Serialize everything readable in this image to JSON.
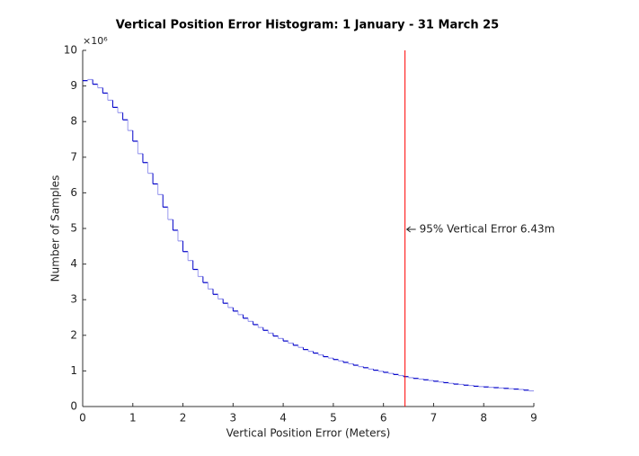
{
  "chart_data": {
    "type": "histogram",
    "title": "Vertical Position Error Histogram: 1 January  - 31 March 25",
    "x_label": "Vertical Position Error (Meters)",
    "y_label": "Number of Samples",
    "y_multiplier": "×10⁶",
    "bins": [
      0,
      0.1,
      0.2,
      0.3,
      0.4,
      0.5,
      0.6,
      0.7,
      0.8,
      0.9,
      1,
      1.1,
      1.2,
      1.3,
      1.4,
      1.5,
      1.6,
      1.7,
      1.8,
      1.9,
      2,
      2.1,
      2.2,
      2.3,
      2.4,
      2.5,
      2.6,
      2.7,
      2.8,
      2.9,
      3,
      3.1,
      3.2,
      3.3,
      3.4,
      3.5,
      3.6,
      3.7,
      3.8,
      3.9,
      4,
      4.1,
      4.2,
      4.3,
      4.4,
      4.5,
      4.6,
      4.7,
      4.8,
      4.9,
      5,
      5.1,
      5.2,
      5.3,
      5.4,
      5.5,
      5.6,
      5.7,
      5.8,
      5.9,
      6,
      6.1,
      6.2,
      6.3,
      6.4,
      6.5,
      6.6,
      6.7,
      6.8,
      6.9,
      7,
      7.1,
      7.2,
      7.3,
      7.4,
      7.5,
      7.6,
      7.7,
      7.8,
      7.9,
      8,
      8.1,
      8.2,
      8.3,
      8.4,
      8.5,
      8.6,
      8.7,
      8.8,
      8.9,
      9
    ],
    "values": [
      9.15,
      9.18,
      9.05,
      8.95,
      8.8,
      8.6,
      8.4,
      8.25,
      8.05,
      7.75,
      7.45,
      7.1,
      6.85,
      6.55,
      6.25,
      5.95,
      5.6,
      5.25,
      4.95,
      4.65,
      4.35,
      4.1,
      3.85,
      3.65,
      3.48,
      3.3,
      3.15,
      3.02,
      2.9,
      2.78,
      2.68,
      2.58,
      2.48,
      2.39,
      2.3,
      2.22,
      2.14,
      2.06,
      1.98,
      1.91,
      1.84,
      1.78,
      1.72,
      1.66,
      1.6,
      1.55,
      1.5,
      1.45,
      1.4,
      1.36,
      1.32,
      1.28,
      1.24,
      1.2,
      1.16,
      1.12,
      1.09,
      1.05,
      1.02,
      0.99,
      0.96,
      0.93,
      0.9,
      0.87,
      0.84,
      0.81,
      0.79,
      0.77,
      0.75,
      0.73,
      0.71,
      0.69,
      0.67,
      0.65,
      0.63,
      0.62,
      0.6,
      0.59,
      0.57,
      0.56,
      0.55,
      0.54,
      0.53,
      0.52,
      0.51,
      0.5,
      0.49,
      0.48,
      0.46,
      0.44
    ],
    "colors": [
      "#0000c8",
      "#9a9aee"
    ],
    "xlim": [
      0,
      9
    ],
    "xticks": [
      0,
      1,
      2,
      3,
      4,
      5,
      6,
      7,
      8,
      9
    ],
    "ylim": [
      0,
      10
    ],
    "yticks": [
      0,
      1,
      2,
      3,
      4,
      5,
      6,
      7,
      8,
      9,
      10
    ],
    "grid": false,
    "reference_line": {
      "x": 6.43,
      "color": "#ff0000",
      "label": "95% Vertical Error 6.43m"
    }
  }
}
